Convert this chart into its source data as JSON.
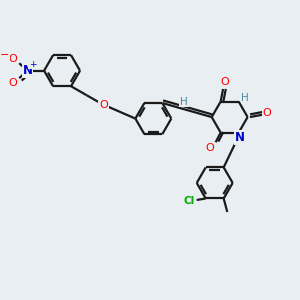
{
  "background_color": "#e8eef2",
  "bond_color": "#1a1a1a",
  "colors": {
    "O": "#ff0000",
    "N": "#0000cc",
    "Cl": "#00aa00",
    "H": "#4d8899",
    "C": "#1a1a1a"
  },
  "lw": 1.6,
  "ring_r": 0.62
}
